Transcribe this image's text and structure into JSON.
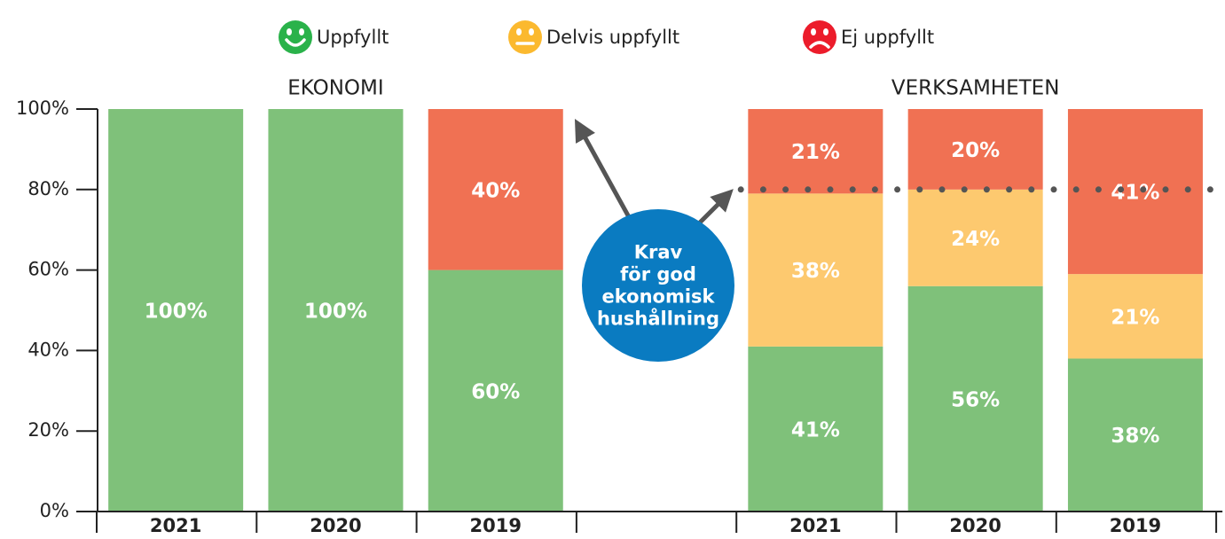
{
  "chart_data": {
    "type": "stacked_bar",
    "categories": [
      "2021",
      "2020",
      "2019",
      null,
      "2021",
      "2020",
      "2019"
    ],
    "groups": [
      {
        "label": "EKONOMI",
        "start": 0,
        "end": 2
      },
      {
        "label": "VERKSAMHETEN",
        "start": 4,
        "end": 6
      }
    ],
    "series": [
      {
        "name": "Uppfyllt",
        "color": "#7fc17a",
        "face": "happy",
        "icon_color": "#2ab24a",
        "values": [
          100,
          100,
          60,
          null,
          41,
          56,
          38
        ],
        "value_labels": [
          "100%",
          "100%",
          "60%",
          null,
          "41%",
          "56%",
          "38%"
        ]
      },
      {
        "name": "Delvis uppfyllt",
        "color": "#fdc96f",
        "face": "neutral",
        "icon_color": "#fbb92f",
        "values": [
          null,
          null,
          null,
          null,
          38,
          24,
          21
        ],
        "value_labels": [
          null,
          null,
          null,
          null,
          "38%",
          "24%",
          "21%"
        ]
      },
      {
        "name": "Ej uppfyllt",
        "color": "#f07153",
        "face": "sad",
        "icon_color": "#ec1c2b",
        "values": [
          null,
          null,
          40,
          null,
          21,
          20,
          41
        ],
        "value_labels": [
          null,
          null,
          "40%",
          null,
          "21%",
          "20%",
          "41%"
        ]
      }
    ],
    "ylim": [
      0,
      100
    ],
    "yticks": [
      {
        "value": 0,
        "label": "0%"
      },
      {
        "value": 20,
        "label": "20%"
      },
      {
        "value": 40,
        "label": "40%"
      },
      {
        "value": 60,
        "label": "60%"
      },
      {
        "value": 80,
        "label": "80%"
      },
      {
        "value": 100,
        "label": "100%"
      }
    ],
    "reference_line": {
      "value": 80,
      "start": 4,
      "end": 6
    },
    "annotation": {
      "lines": [
        "Krav",
        "för god",
        "ekonomisk",
        "hushållning"
      ],
      "color": "#0a7bc1"
    }
  }
}
